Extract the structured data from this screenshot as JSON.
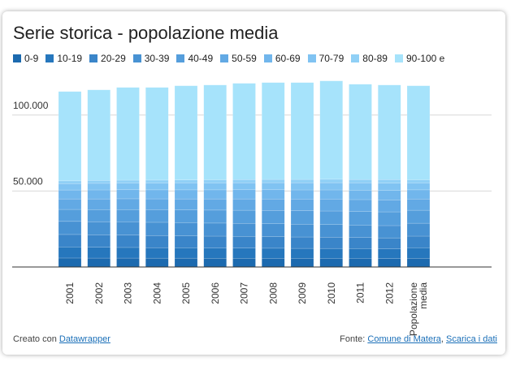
{
  "chart_data": {
    "type": "stacked_bar",
    "title": "Serie storica - popolazione media",
    "categories": [
      "2001",
      "2002",
      "2003",
      "2004",
      "2005",
      "2006",
      "2007",
      "2008",
      "2009",
      "2010",
      "2011",
      "2012",
      "Popolazione media"
    ],
    "series": [
      {
        "name": "0-9",
        "color": "#1c6aaf",
        "values": [
          5900,
          5850,
          5850,
          5800,
          5800,
          5750,
          5750,
          5700,
          5650,
          5650,
          5600,
          5550,
          5750
        ]
      },
      {
        "name": "10-19",
        "color": "#2677bd",
        "values": [
          7200,
          7100,
          7000,
          6900,
          6800,
          6750,
          6700,
          6650,
          6600,
          6550,
          6450,
          6400,
          6800
        ]
      },
      {
        "name": "20-29",
        "color": "#3a85c9",
        "values": [
          8300,
          8200,
          8100,
          8000,
          7900,
          7800,
          7700,
          7600,
          7500,
          7400,
          7300,
          7200,
          7750
        ]
      },
      {
        "name": "30-39",
        "color": "#4892d3",
        "values": [
          8600,
          8650,
          8700,
          8700,
          8650,
          8600,
          8550,
          8500,
          8400,
          8300,
          8200,
          8100,
          8500
        ]
      },
      {
        "name": "40-49",
        "color": "#559edc",
        "values": [
          7900,
          8000,
          8150,
          8300,
          8400,
          8550,
          8650,
          8750,
          8850,
          8950,
          9000,
          9050,
          8550
        ]
      },
      {
        "name": "50-59",
        "color": "#62a9e4",
        "values": [
          6900,
          7000,
          7100,
          7150,
          7250,
          7350,
          7450,
          7550,
          7650,
          7750,
          7800,
          7850,
          7400
        ]
      },
      {
        "name": "60-69",
        "color": "#71b6ec",
        "values": [
          5900,
          5950,
          5950,
          5950,
          6000,
          6000,
          6050,
          6100,
          6100,
          6150,
          6200,
          6250,
          6050
        ]
      },
      {
        "name": "70-79",
        "color": "#80c3f2",
        "values": [
          4200,
          4300,
          4400,
          4450,
          4500,
          4550,
          4600,
          4650,
          4700,
          4750,
          4750,
          4800,
          4550
        ]
      },
      {
        "name": "80-89",
        "color": "#90d0f6",
        "values": [
          1800,
          1850,
          1900,
          1950,
          2000,
          2050,
          2100,
          2150,
          2200,
          2250,
          2300,
          2350,
          2050
        ]
      },
      {
        "name": "90-100 e",
        "color": "#a6e3fb",
        "values": [
          58800,
          59700,
          61050,
          61000,
          62000,
          62400,
          63350,
          63750,
          63750,
          64750,
          62700,
          62250,
          61900
        ]
      }
    ],
    "ylim": [
      0,
      125000
    ],
    "yticks": [
      {
        "value": 50000,
        "label": "50.000"
      },
      {
        "value": 100000,
        "label": "100.000"
      }
    ],
    "grid": true
  },
  "footer": {
    "credit": "Creato con",
    "credit_link": "Datawrapper",
    "source": "Fonte:",
    "source_links": [
      "Comune di Matera",
      "Scarica i dati"
    ],
    "separator": ","
  }
}
